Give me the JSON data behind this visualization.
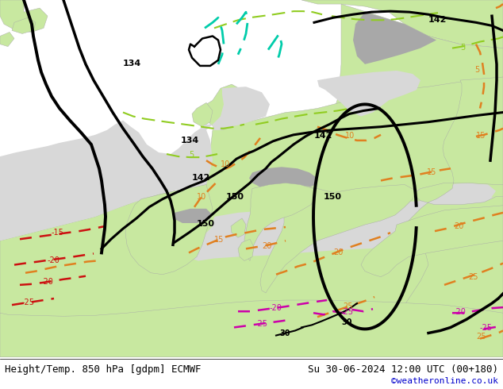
{
  "title_left": "Height/Temp. 850 hPa [gdpm] ECMWF",
  "title_right": "Su 30-06-2024 12:00 UTC (00+180)",
  "credit": "©weatheronline.co.uk",
  "credit_color": "#0000cc",
  "bg_color_sea": "#d8d8d8",
  "bg_color_land": "#c8e8a0",
  "fig_width": 6.34,
  "fig_height": 4.9,
  "dpi": 100,
  "footer_bg": "#ffffff",
  "text_color": "#000000",
  "font_size_title": 9,
  "font_size_credit": 8,
  "orange_color": "#e08020",
  "red_color": "#cc1010",
  "pink_color": "#cc00aa",
  "black_color": "#000000",
  "green_dash_color": "#90cc20",
  "cyan_dash_color": "#00ccaa"
}
